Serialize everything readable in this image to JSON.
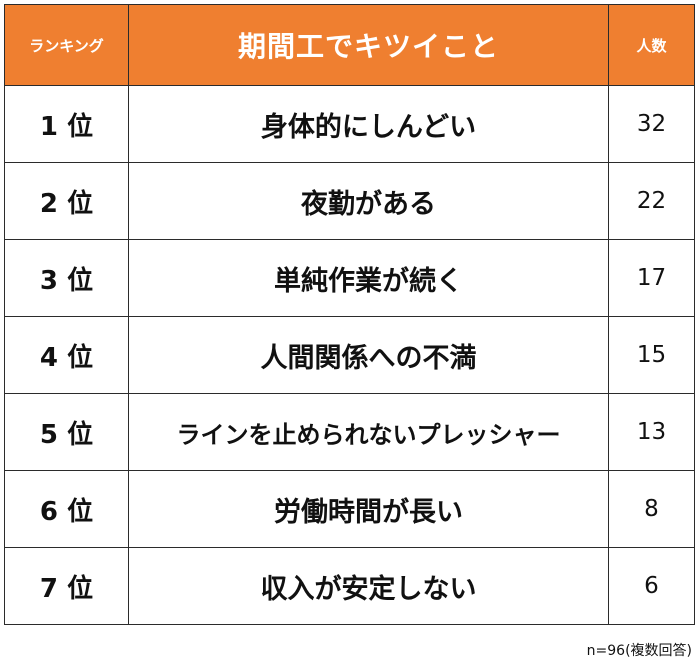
{
  "header": {
    "rank_label": "ランキング",
    "item_label": "期間工でキツイこと",
    "count_label": "人数"
  },
  "rows": [
    {
      "rank": "1 位",
      "item": "身体的にしんどい",
      "count": "32"
    },
    {
      "rank": "2 位",
      "item": "夜勤がある",
      "count": "22"
    },
    {
      "rank": "3 位",
      "item": "単純作業が続く",
      "count": "17"
    },
    {
      "rank": "4 位",
      "item": "人間関係への不満",
      "count": "15"
    },
    {
      "rank": "5 位",
      "item": "ラインを止められないプレッシャー",
      "count": "13"
    },
    {
      "rank": "6 位",
      "item": "労働時間が長い",
      "count": "8"
    },
    {
      "rank": "7 位",
      "item": "収入が安定しない",
      "count": "6"
    }
  ],
  "footnote": "n=96(複数回答)",
  "colors": {
    "header_background": "#ef7f30",
    "header_text": "#ffffff",
    "border": "#2b2b2b"
  }
}
